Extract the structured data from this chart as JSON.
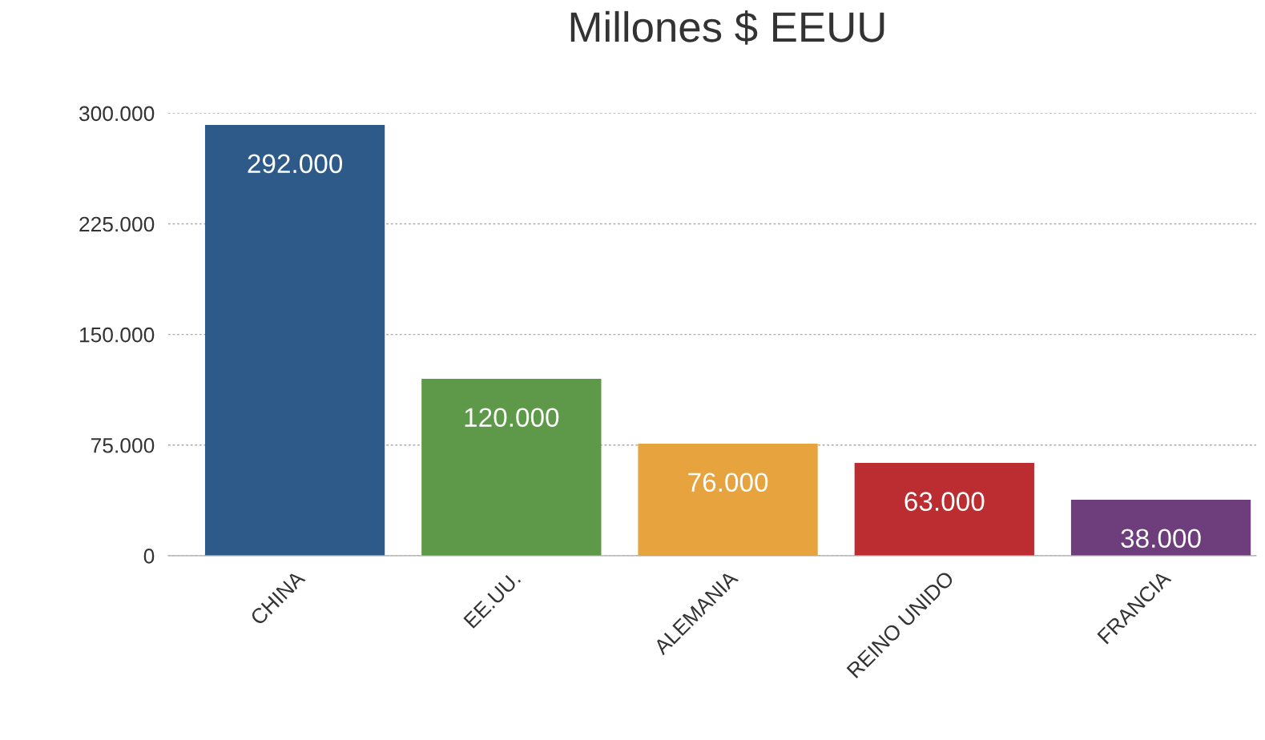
{
  "chart_data": {
    "type": "bar",
    "title": "Millones $ EEUU",
    "categories": [
      "CHINA",
      "EE.UU.",
      "ALEMANIA",
      "REINO UNIDO",
      "FRANCIA"
    ],
    "values": [
      292000,
      120000,
      76000,
      63000,
      38000
    ],
    "colors": [
      "#2e5a8a",
      "#5e994a",
      "#e6a33e",
      "#bb2d30",
      "#6e3e7c"
    ],
    "value_labels": [
      "292.000",
      "120.000",
      "76.000",
      "63.000",
      "38.000"
    ],
    "ylim": [
      0,
      300000
    ],
    "yticks": [
      0,
      {
        "value": 75000,
        "label": "75.000"
      },
      {
        "value": 150000,
        "label": "150.000"
      },
      {
        "value": 225000,
        "label": "225.000"
      },
      {
        "value": 300000,
        "label": "300.000"
      }
    ],
    "grid": "y"
  }
}
